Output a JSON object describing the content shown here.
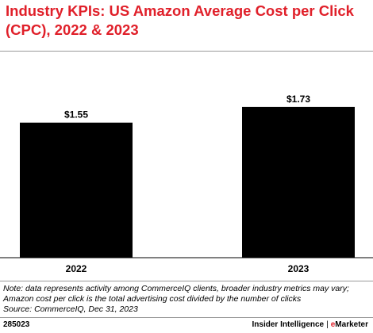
{
  "title": "Industry KPIs: US Amazon Average Cost per Click (CPC), 2022 & 2023",
  "colors": {
    "title": "#e0202a",
    "bar": "#000000",
    "brand_accent": "#e0202a"
  },
  "chart_data": {
    "type": "bar",
    "categories": [
      "2022",
      "2023"
    ],
    "values": [
      1.55,
      1.73
    ],
    "value_labels": [
      "$1.55",
      "$1.73"
    ],
    "ylim": [
      0,
      2.0
    ],
    "grid": false,
    "xlabel": "",
    "ylabel": ""
  },
  "notes": {
    "note": "Note: data represents activity among CommerceIQ clients, broader industry metrics may vary; Amazon cost per click is the total advertising cost divided by the number of clicks",
    "source": "Source: CommerceIQ, Dec 31, 2023"
  },
  "footer": {
    "chart_id": "285023",
    "brand_left": "Insider Intelligence",
    "brand_separator": "|",
    "brand_e": "e",
    "brand_right": "Marketer"
  }
}
